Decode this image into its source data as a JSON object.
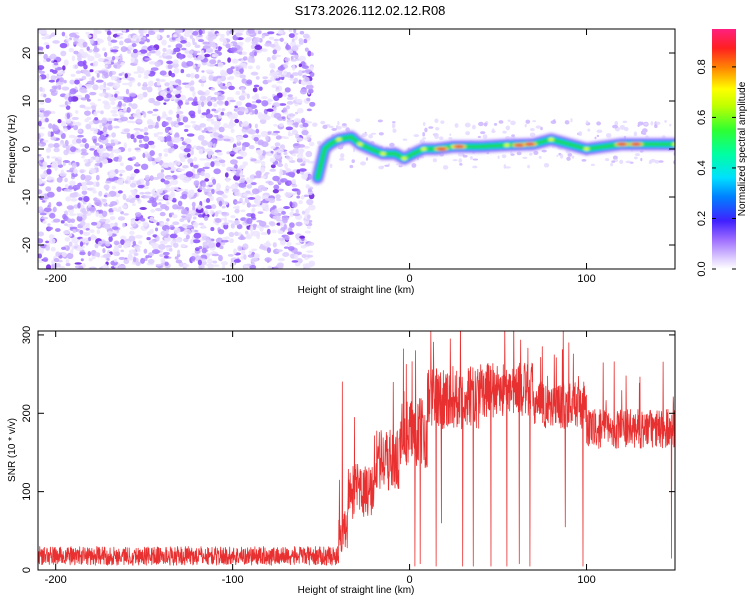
{
  "title": "S173.2026.112.02.12.R08",
  "colors": {
    "snr_line": "#e83030",
    "ridge_core": "#e8222a",
    "noise": "#6a1ee0"
  },
  "chart_data": [
    {
      "type": "heatmap",
      "name": "spectrogram",
      "xlabel": "Height of straight line (km)",
      "ylabel": "Frequency (Hz)",
      "xlim": [
        -210,
        150
      ],
      "ylim": [
        -25,
        25
      ],
      "xticks": [
        -200,
        -100,
        0,
        100
      ],
      "yticks": [
        -20,
        -10,
        0,
        10,
        20
      ],
      "noise_region_x": [
        -210,
        -55
      ],
      "signal_region_x": [
        -55,
        150
      ],
      "ridge": [
        {
          "x": -52,
          "y": -6
        },
        {
          "x": -50,
          "y": -3
        },
        {
          "x": -48,
          "y": 0
        },
        {
          "x": -45,
          "y": 1
        },
        {
          "x": -40,
          "y": 2
        },
        {
          "x": -33,
          "y": 2.5
        },
        {
          "x": -28,
          "y": 1
        },
        {
          "x": -22,
          "y": 0
        },
        {
          "x": -15,
          "y": -1
        },
        {
          "x": -8,
          "y": -1
        },
        {
          "x": -3,
          "y": -2
        },
        {
          "x": 2,
          "y": -1
        },
        {
          "x": 8,
          "y": 0
        },
        {
          "x": 15,
          "y": 0
        },
        {
          "x": 25,
          "y": 0.5
        },
        {
          "x": 40,
          "y": 0.5
        },
        {
          "x": 55,
          "y": 0.8
        },
        {
          "x": 70,
          "y": 1
        },
        {
          "x": 80,
          "y": 2
        },
        {
          "x": 90,
          "y": 1
        },
        {
          "x": 100,
          "y": 0
        },
        {
          "x": 110,
          "y": 0.5
        },
        {
          "x": 120,
          "y": 1
        },
        {
          "x": 135,
          "y": 1
        },
        {
          "x": 150,
          "y": 1
        }
      ],
      "ridge_peaks": [
        {
          "x": 18,
          "y": 0
        },
        {
          "x": 28,
          "y": 0.5
        },
        {
          "x": 62,
          "y": 0.8
        },
        {
          "x": 68,
          "y": 1
        },
        {
          "x": 120,
          "y": 1
        },
        {
          "x": 128,
          "y": 1
        }
      ],
      "colorbar": {
        "label": "Normalized spectral amplitude",
        "range": [
          0,
          0.95
        ],
        "ticks": [
          0.0,
          0.2,
          0.4,
          0.6,
          0.8
        ],
        "tick_labels": [
          "0.0",
          "0.2",
          "0.4",
          "0.6",
          "0.8"
        ]
      }
    },
    {
      "type": "line",
      "name": "snr",
      "xlabel": "Height of straight line (km)",
      "ylabel": "SNR (10 * v/v)",
      "xlim": [
        -210,
        150
      ],
      "ylim": [
        0,
        305
      ],
      "xticks": [
        -200,
        -100,
        0,
        100
      ],
      "yticks": [
        0,
        100,
        200,
        300
      ],
      "series": [
        {
          "name": "SNR",
          "segments": [
            {
              "x": [
                -210,
                -40
              ],
              "mean": 18,
              "amp": 12
            },
            {
              "x": [
                -40,
                -35
              ],
              "mean": 50,
              "amp": 30
            },
            {
              "x": [
                -35,
                -20
              ],
              "mean": 100,
              "amp": 35
            },
            {
              "x": [
                -20,
                -5
              ],
              "mean": 140,
              "amp": 40
            },
            {
              "x": [
                -5,
                10
              ],
              "mean": 175,
              "amp": 45
            },
            {
              "x": [
                10,
                40
              ],
              "mean": 220,
              "amp": 40
            },
            {
              "x": [
                40,
                70
              ],
              "mean": 230,
              "amp": 35
            },
            {
              "x": [
                70,
                100
              ],
              "mean": 210,
              "amp": 30
            },
            {
              "x": [
                100,
                150
              ],
              "mean": 180,
              "amp": 25
            }
          ],
          "spikes": [
            {
              "x": -38,
              "y": 240
            },
            {
              "x": 12,
              "y": 305
            },
            {
              "x": 23,
              "y": 295
            },
            {
              "x": 75,
              "y": 285
            },
            {
              "x": 90,
              "y": 290
            },
            {
              "x": 146,
              "y": 205
            }
          ],
          "dips": [
            {
              "x": 3,
              "y": 5
            },
            {
              "x": 6,
              "y": 8
            },
            {
              "x": 15,
              "y": 5
            },
            {
              "x": 18,
              "y": 60
            },
            {
              "x": 30,
              "y": 5
            },
            {
              "x": 36,
              "y": 5
            },
            {
              "x": 46,
              "y": 5
            },
            {
              "x": 55,
              "y": 5
            },
            {
              "x": 62,
              "y": 8
            },
            {
              "x": 68,
              "y": 5
            },
            {
              "x": 88,
              "y": 55
            },
            {
              "x": 98,
              "y": 5
            },
            {
              "x": 148,
              "y": 15
            }
          ]
        }
      ]
    }
  ]
}
